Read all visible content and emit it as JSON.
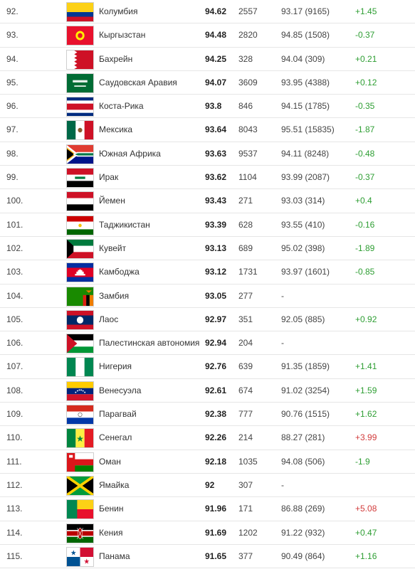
{
  "rows": [
    {
      "rank": "92.",
      "country": "Колумбия",
      "score": "94.62",
      "tests": "2557",
      "prev": "93.17 (9165)",
      "change": "+1.45",
      "change_color": "green",
      "flag": "colombia-flag"
    },
    {
      "rank": "93.",
      "country": "Кыргызстан",
      "score": "94.48",
      "tests": "2820",
      "prev": "94.85 (1508)",
      "change": "-0.37",
      "change_color": "green",
      "flag": "kyrgyzstan-flag"
    },
    {
      "rank": "94.",
      "country": "Бахрейн",
      "score": "94.25",
      "tests": "328",
      "prev": "94.04 (309)",
      "change": "+0.21",
      "change_color": "green",
      "flag": "bahrain-flag"
    },
    {
      "rank": "95.",
      "country": "Саудовская Аравия",
      "score": "94.07",
      "tests": "3609",
      "prev": "93.95 (4388)",
      "change": "+0.12",
      "change_color": "green",
      "flag": "saudi-arabia-flag"
    },
    {
      "rank": "96.",
      "country": "Коста-Рика",
      "score": "93.8",
      "tests": "846",
      "prev": "94.15 (1785)",
      "change": "-0.35",
      "change_color": "green",
      "flag": "costa-rica-flag"
    },
    {
      "rank": "97.",
      "country": "Мексика",
      "score": "93.64",
      "tests": "8043",
      "prev": "95.51 (15835)",
      "change": "-1.87",
      "change_color": "green",
      "flag": "mexico-flag"
    },
    {
      "rank": "98.",
      "country": "Южная Африка",
      "score": "93.63",
      "tests": "9537",
      "prev": "94.11 (8248)",
      "change": "-0.48",
      "change_color": "green",
      "flag": "south-africa-flag"
    },
    {
      "rank": "99.",
      "country": "Ирак",
      "score": "93.62",
      "tests": "1104",
      "prev": "93.99 (2087)",
      "change": "-0.37",
      "change_color": "green",
      "flag": "iraq-flag"
    },
    {
      "rank": "100.",
      "country": "Йемен",
      "score": "93.43",
      "tests": "271",
      "prev": "93.03 (314)",
      "change": "+0.4",
      "change_color": "green",
      "flag": "yemen-flag"
    },
    {
      "rank": "101.",
      "country": "Таджикистан",
      "score": "93.39",
      "tests": "628",
      "prev": "93.55 (410)",
      "change": "-0.16",
      "change_color": "green",
      "flag": "tajikistan-flag"
    },
    {
      "rank": "102.",
      "country": "Кувейт",
      "score": "93.13",
      "tests": "689",
      "prev": "95.02 (398)",
      "change": "-1.89",
      "change_color": "green",
      "flag": "kuwait-flag"
    },
    {
      "rank": "103.",
      "country": "Камбоджа",
      "score": "93.12",
      "tests": "1731",
      "prev": "93.97 (1601)",
      "change": "-0.85",
      "change_color": "green",
      "flag": "cambodia-flag"
    },
    {
      "rank": "104.",
      "country": "Замбия",
      "score": "93.05",
      "tests": "277",
      "prev": "-",
      "change": "",
      "change_color": "green",
      "flag": "zambia-flag"
    },
    {
      "rank": "105.",
      "country": "Лаос",
      "score": "92.97",
      "tests": "351",
      "prev": "92.05 (885)",
      "change": "+0.92",
      "change_color": "green",
      "flag": "laos-flag"
    },
    {
      "rank": "106.",
      "country": "Палестинская автономия",
      "score": "92.94",
      "tests": "204",
      "prev": "-",
      "change": "",
      "change_color": "green",
      "flag": "palestine-flag"
    },
    {
      "rank": "107.",
      "country": "Нигерия",
      "score": "92.76",
      "tests": "639",
      "prev": "91.35 (1859)",
      "change": "+1.41",
      "change_color": "green",
      "flag": "nigeria-flag"
    },
    {
      "rank": "108.",
      "country": "Венесуэла",
      "score": "92.61",
      "tests": "674",
      "prev": "91.02 (3254)",
      "change": "+1.59",
      "change_color": "green",
      "flag": "venezuela-flag"
    },
    {
      "rank": "109.",
      "country": "Парагвай",
      "score": "92.38",
      "tests": "777",
      "prev": "90.76 (1515)",
      "change": "+1.62",
      "change_color": "green",
      "flag": "paraguay-flag"
    },
    {
      "rank": "110.",
      "country": "Сенегал",
      "score": "92.26",
      "tests": "214",
      "prev": "88.27 (281)",
      "change": "+3.99",
      "change_color": "red",
      "flag": "senegal-flag"
    },
    {
      "rank": "111.",
      "country": "Оман",
      "score": "92.18",
      "tests": "1035",
      "prev": "94.08 (506)",
      "change": "-1.9",
      "change_color": "green",
      "flag": "oman-flag"
    },
    {
      "rank": "112.",
      "country": "Ямайка",
      "score": "92",
      "tests": "307",
      "prev": "-",
      "change": "",
      "change_color": "green",
      "flag": "jamaica-flag"
    },
    {
      "rank": "113.",
      "country": "Бенин",
      "score": "91.96",
      "tests": "171",
      "prev": "86.88 (269)",
      "change": "+5.08",
      "change_color": "red",
      "flag": "benin-flag"
    },
    {
      "rank": "114.",
      "country": "Кения",
      "score": "91.69",
      "tests": "1202",
      "prev": "91.22 (932)",
      "change": "+0.47",
      "change_color": "green",
      "flag": "kenya-flag"
    },
    {
      "rank": "115.",
      "country": "Панама",
      "score": "91.65",
      "tests": "377",
      "prev": "90.49 (864)",
      "change": "+1.16",
      "change_color": "green",
      "flag": "panama-flag"
    }
  ]
}
